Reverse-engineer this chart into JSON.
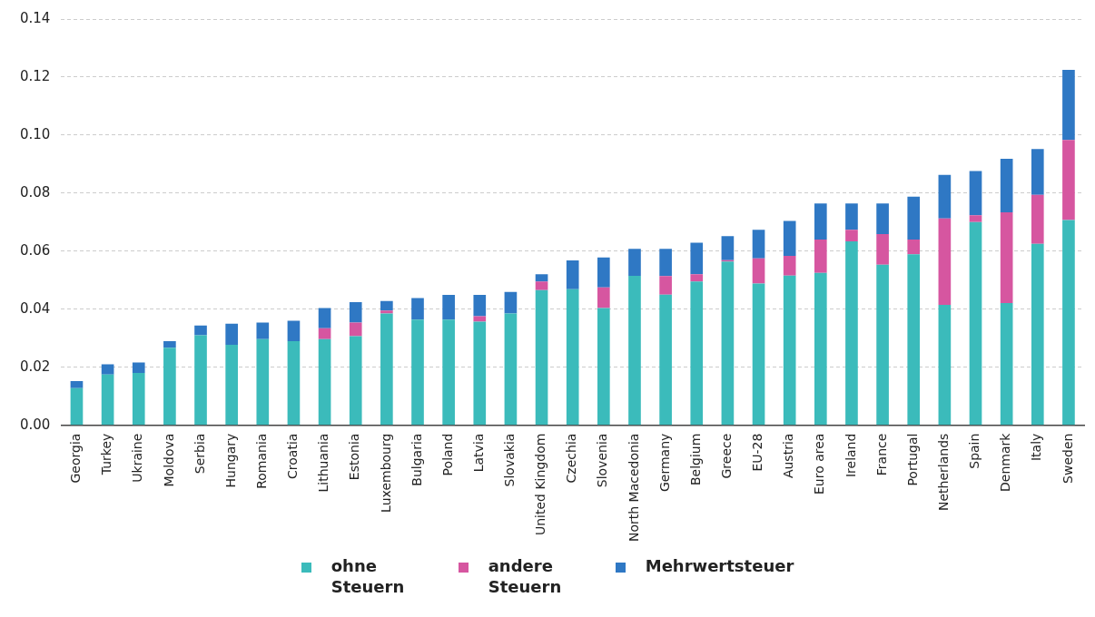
{
  "chart_data": {
    "type": "bar",
    "stacked": true,
    "categories": [
      "Georgia",
      "Turkey",
      "Ukraine",
      "Moldova",
      "Serbia",
      "Hungary",
      "Romania",
      "Croatia",
      "Lithuania",
      "Estonia",
      "Luxembourg",
      "Bulgaria",
      "Poland",
      "Latvia",
      "Slovakia",
      "United Kingdom",
      "Czechia",
      "Slovenia",
      "North Macedonia",
      "Germany",
      "Belgium",
      "Greece",
      "EU-28",
      "Austria",
      "Euro area",
      "Ireland",
      "France",
      "Portugal",
      "Netherlands",
      "Spain",
      "Denmark",
      "Italy",
      "Sweden"
    ],
    "series": [
      {
        "name": "ohne Steuern",
        "color": "#3bbbbb",
        "values": [
          0.0128,
          0.0175,
          0.018,
          0.0267,
          0.031,
          0.0277,
          0.0297,
          0.029,
          0.0297,
          0.0307,
          0.0385,
          0.0364,
          0.0364,
          0.0357,
          0.0385,
          0.0466,
          0.0469,
          0.0404,
          0.0515,
          0.045,
          0.0495,
          0.0564,
          0.0488,
          0.0516,
          0.0525,
          0.0634,
          0.0553,
          0.0589,
          0.0415,
          0.07,
          0.0421,
          0.0625,
          0.0707
        ]
      },
      {
        "name": "andere Steuern",
        "color": "#d656a0",
        "values": [
          0,
          0,
          0,
          0,
          0,
          0,
          0,
          0,
          0.0037,
          0.0047,
          0.001,
          0,
          0,
          0.0019,
          0,
          0.0029,
          0,
          0.0071,
          0,
          0.0064,
          0.0025,
          0.0005,
          0.0087,
          0.0068,
          0.0115,
          0.004,
          0.0106,
          0.0051,
          0.0298,
          0.0024,
          0.0313,
          0.0169,
          0.0276
        ]
      },
      {
        "name": "Mehrwertsteuer",
        "color": "#2f78c4",
        "values": [
          0.0024,
          0.0035,
          0.0036,
          0.0023,
          0.0034,
          0.0073,
          0.0057,
          0.007,
          0.007,
          0.007,
          0.0033,
          0.0074,
          0.0085,
          0.0073,
          0.0074,
          0.0025,
          0.0099,
          0.0103,
          0.0093,
          0.0094,
          0.0109,
          0.0083,
          0.0099,
          0.012,
          0.0124,
          0.009,
          0.0105,
          0.0148,
          0.015,
          0.0152,
          0.0184,
          0.0158,
          0.0242
        ]
      }
    ],
    "ylim": [
      0,
      0.14
    ],
    "yticks": [
      {
        "value": 0,
        "label": "0.00"
      },
      {
        "value": 0.02,
        "label": "0.02"
      },
      {
        "value": 0.04,
        "label": "0.04"
      },
      {
        "value": 0.06,
        "label": "0.06"
      },
      {
        "value": 0.08,
        "label": "0.08"
      },
      {
        "value": 0.1,
        "label": "0.10"
      },
      {
        "value": 0.12,
        "label": "0.12"
      },
      {
        "value": 0.14,
        "label": "0.14"
      }
    ],
    "grid": "y",
    "legend": "bottom"
  }
}
